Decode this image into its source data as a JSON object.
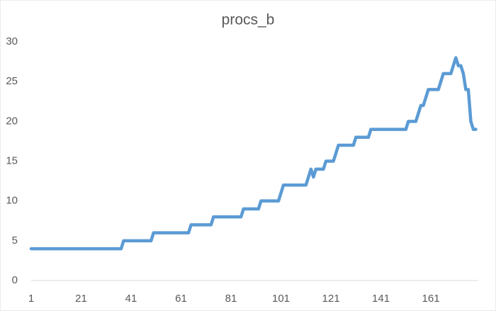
{
  "chart_data": {
    "type": "line",
    "title": "procs_b",
    "categories": [
      "1",
      null,
      null,
      null,
      null,
      null,
      null,
      null,
      null,
      null,
      null,
      null,
      null,
      null,
      null,
      null,
      null,
      null,
      null,
      null,
      "21",
      null,
      null,
      null,
      null,
      null,
      null,
      null,
      null,
      null,
      null,
      null,
      null,
      null,
      null,
      null,
      null,
      null,
      null,
      null,
      "41",
      null,
      null,
      null,
      null,
      null,
      null,
      null,
      null,
      null,
      null,
      null,
      null,
      null,
      null,
      null,
      null,
      null,
      null,
      null,
      "61",
      null,
      null,
      null,
      null,
      null,
      null,
      null,
      null,
      null,
      null,
      null,
      null,
      null,
      null,
      null,
      null,
      null,
      null,
      null,
      "81",
      null,
      null,
      null,
      null,
      null,
      null,
      null,
      null,
      null,
      null,
      null,
      null,
      null,
      null,
      null,
      null,
      null,
      null,
      null,
      "101",
      null,
      null,
      null,
      null,
      null,
      null,
      null,
      null,
      null,
      null,
      null,
      null,
      null,
      null,
      null,
      null,
      null,
      null,
      null,
      "121",
      null,
      null,
      null,
      null,
      null,
      null,
      null,
      null,
      null,
      null,
      null,
      null,
      null,
      null,
      null,
      null,
      null,
      null,
      null,
      "141",
      null,
      null,
      null,
      null,
      null,
      null,
      null,
      null,
      null,
      null,
      null,
      null,
      null,
      null,
      null,
      null,
      null,
      null,
      null,
      "161",
      null,
      null,
      null,
      null,
      null,
      null,
      null,
      null,
      null,
      null,
      null,
      null,
      null,
      null,
      null,
      null,
      null,
      null
    ],
    "values": [
      4,
      4,
      4,
      4,
      4,
      4,
      4,
      4,
      4,
      4,
      4,
      4,
      4,
      4,
      4,
      4,
      4,
      4,
      4,
      4,
      4,
      4,
      4,
      4,
      4,
      4,
      4,
      4,
      4,
      4,
      4,
      4,
      4,
      4,
      4,
      4,
      4,
      5,
      5,
      5,
      5,
      5,
      5,
      5,
      5,
      5,
      5,
      5,
      5,
      6,
      6,
      6,
      6,
      6,
      6,
      6,
      6,
      6,
      6,
      6,
      6,
      6,
      6,
      6,
      7,
      7,
      7,
      7,
      7,
      7,
      7,
      7,
      7,
      8,
      8,
      8,
      8,
      8,
      8,
      8,
      8,
      8,
      8,
      8,
      8,
      9,
      9,
      9,
      9,
      9,
      9,
      9,
      10,
      10,
      10,
      10,
      10,
      10,
      10,
      10,
      11,
      12,
      12,
      12,
      12,
      12,
      12,
      12,
      12,
      12,
      12,
      13,
      14,
      13,
      14,
      14,
      14,
      14,
      15,
      15,
      15,
      15,
      16,
      17,
      17,
      17,
      17,
      17,
      17,
      17,
      18,
      18,
      18,
      18,
      18,
      18,
      19,
      19,
      19,
      19,
      19,
      19,
      19,
      19,
      19,
      19,
      19,
      19,
      19,
      19,
      19,
      20,
      20,
      20,
      20,
      21,
      22,
      22,
      23,
      24,
      24,
      24,
      24,
      24,
      25,
      26,
      26,
      26,
      26,
      27,
      28,
      27,
      27,
      26,
      24,
      24,
      20,
      19,
      19
    ],
    "color": "#5b9bd5",
    "ylim": [
      0,
      30
    ],
    "yticks": [
      0,
      5,
      10,
      15,
      20,
      25,
      30
    ],
    "grid": false
  }
}
